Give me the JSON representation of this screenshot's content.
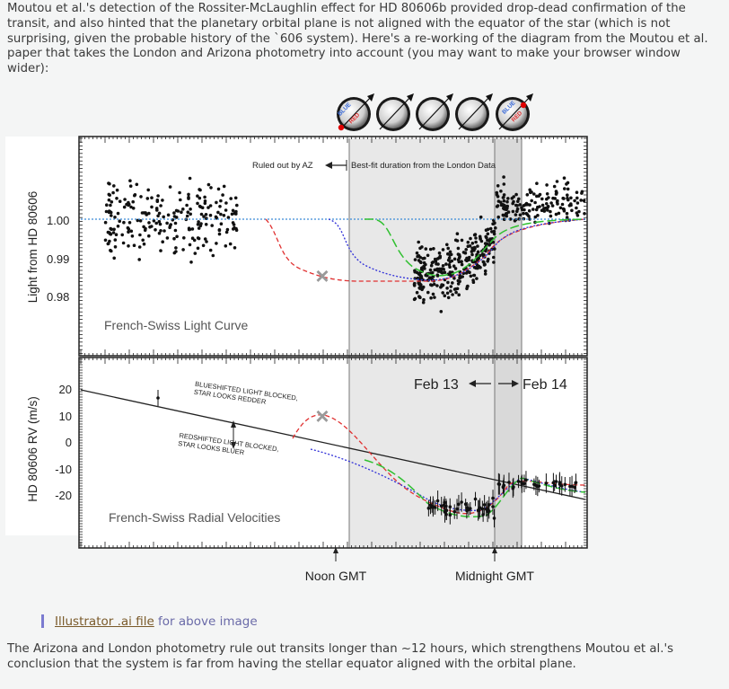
{
  "intro_text": "Moutou et al.'s detection of the Rossiter-McLaughlin effect for HD 80606b provided drop-dead confirmation of the transit, and also hinted that the planetary orbital plane is not aligned with the equator of the star (which is not surprising, given the probable history of the `606 system). Here's a re-working of the diagram from the Moutou et al. paper that takes the London and Arizona photometry into account (you may want to make your browser window wider):",
  "figure": {
    "star_labels": {
      "blue": "BLUE",
      "red": "RED"
    },
    "top_panel": {
      "ylabel": "Light from HD 80606",
      "yticks": [
        "1.00",
        "0.99",
        "0.98"
      ],
      "panel_label": "French-Swiss Light Curve",
      "annotation_az": "Ruled out by AZ",
      "annotation_london": "Best-fit duration from the London Data"
    },
    "bottom_panel": {
      "ylabel": "HD 80606 RV (m/s)",
      "yticks": [
        "20",
        "10",
        "0",
        "-10",
        "-20"
      ],
      "panel_label": "French-Swiss Radial Velocities",
      "note_blue_1": "BLUESHIFTED LIGHT BLOCKED,",
      "note_blue_2": "STAR LOOKS REDDER",
      "note_red_1": "REDSHIFTED LIGHT BLOCKED,",
      "note_red_2": "STAR LOOKS BLUER",
      "feb13": "Feb 13",
      "feb14": "Feb 14"
    },
    "xlabels": {
      "noon": "Noon GMT",
      "midnight": "Midnight GMT"
    }
  },
  "caption": {
    "link": "Illustrator .ai file",
    "rest": "for above image"
  },
  "outro_text": "The Arizona and London photometry rule out transits longer than ~12 hours, which strengthens Moutou et al.'s conclusion that the system is far from having the stellar equator aligned with the orbital plane.",
  "colors": {
    "red_model": "#e03030",
    "blue_model": "#3030d8",
    "green_model": "#30c030",
    "transit_shade": "#e7e7e7"
  }
}
